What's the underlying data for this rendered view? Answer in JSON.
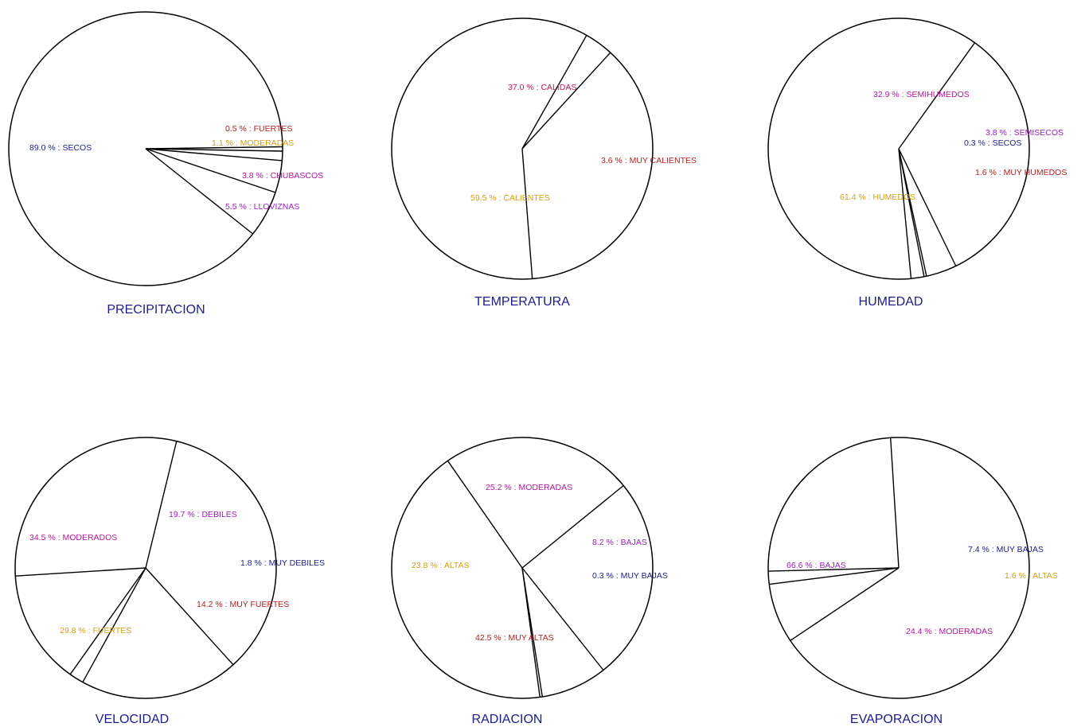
{
  "chart_data": [
    {
      "type": "pie",
      "title": "PRECIPITACION",
      "slices": [
        {
          "label": "0.5 % : FUERTES",
          "value": 0.5,
          "color": "#b22222"
        },
        {
          "label": "1.1 % : MODERADAS",
          "value": 1.1,
          "color": "#d4a017"
        },
        {
          "label": "3.8 % : CHUBASCOS",
          "value": 3.8,
          "color": "#b5179e"
        },
        {
          "label": "5.5 % : LLOVIZNAS",
          "value": 5.5,
          "color": "#a020c0"
        },
        {
          "label": "89.0 % : SECOS",
          "value": 89.0,
          "color": "#1c1c8c"
        }
      ]
    },
    {
      "type": "pie",
      "title": "TEMPERATURA",
      "slices": [
        {
          "label": "37.0 % : CALIDAS",
          "value": 37.0,
          "color": "#c2185b"
        },
        {
          "label": "59.5 % : CALIENTES",
          "value": 59.5,
          "color": "#d4a017"
        },
        {
          "label": "3.6 % : MUY CALIENTES",
          "value": 3.6,
          "color": "#b22222"
        }
      ]
    },
    {
      "type": "pie",
      "title": "HUMEDAD",
      "slices": [
        {
          "label": "32.9 % : SEMIHUMEDOS",
          "value": 32.9,
          "color": "#b5179e"
        },
        {
          "label": "3.8 % : SEMISECOS",
          "value": 3.8,
          "color": "#a020c0"
        },
        {
          "label": "0.3 % : SECOS",
          "value": 0.3,
          "color": "#1c1c8c"
        },
        {
          "label": "1.6 % : MUY HUMEDOS",
          "value": 1.6,
          "color": "#b22222"
        },
        {
          "label": "61.4 % : HUMEDOS",
          "value": 61.4,
          "color": "#d4a017"
        }
      ]
    },
    {
      "type": "pie",
      "title": "VELOCIDAD",
      "slices": [
        {
          "label": "34.5 % : MODERADOS",
          "value": 34.5,
          "color": "#b5179e"
        },
        {
          "label": "19.7 % : DEBILES",
          "value": 19.7,
          "color": "#a020c0"
        },
        {
          "label": "1.8 % : MUY DEBILES",
          "value": 1.8,
          "color": "#1c1c8c"
        },
        {
          "label": "14.2 % : MUY FUERTES",
          "value": 14.2,
          "color": "#b22222"
        },
        {
          "label": "29.8 % : FUERTES",
          "value": 29.8,
          "color": "#d4a017"
        }
      ]
    },
    {
      "type": "pie",
      "title": "RADIACION",
      "slices": [
        {
          "label": "23.8 % : ALTAS",
          "value": 23.8,
          "color": "#d4a017"
        },
        {
          "label": "25.2 % : MODERADAS",
          "value": 25.2,
          "color": "#b5179e"
        },
        {
          "label": "8.2 % : BAJAS",
          "value": 8.2,
          "color": "#a020c0"
        },
        {
          "label": "0.3 % : MUY BAJAS",
          "value": 0.3,
          "color": "#1c1c8c"
        },
        {
          "label": "42.5 % : MUY ALTAS",
          "value": 42.5,
          "color": "#b22222"
        }
      ]
    },
    {
      "type": "pie",
      "title": "EVAPORACION",
      "slices": [
        {
          "label": "66.6 % : BAJAS",
          "value": 66.6,
          "color": "#a020c0"
        },
        {
          "label": "7.4 % : MUY BAJAS",
          "value": 7.4,
          "color": "#1c1c8c"
        },
        {
          "label": "1.6 % : ALTAS",
          "value": 1.6,
          "color": "#d4a017"
        },
        {
          "label": "24.4 % : MODERADAS",
          "value": 24.4,
          "color": "#b5179e"
        }
      ]
    }
  ]
}
